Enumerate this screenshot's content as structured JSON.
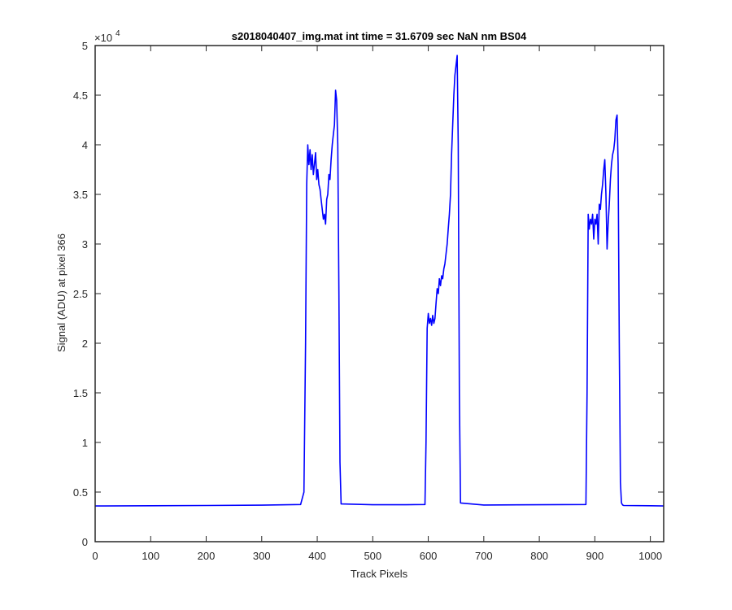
{
  "chart_data": {
    "type": "line",
    "title": "s2018040407_img.mat int time = 31.6709 sec  NaN nm BS04",
    "xlabel": "Track Pixels",
    "ylabel": "Signal (ADU) at pixel 366",
    "y_exponent_label": "×10",
    "y_exponent": "4",
    "xlim": [
      0,
      1024
    ],
    "ylim": [
      0,
      50000
    ],
    "x_ticks": [
      0,
      100,
      200,
      300,
      400,
      500,
      600,
      700,
      800,
      900,
      1000
    ],
    "x_tick_labels": [
      "0",
      "100",
      "200",
      "300",
      "400",
      "500",
      "600",
      "700",
      "800",
      "900",
      "1000"
    ],
    "y_ticks": [
      0,
      5000,
      10000,
      15000,
      20000,
      25000,
      30000,
      35000,
      40000,
      45000,
      50000
    ],
    "y_tick_labels": [
      "0",
      "0.5",
      "1",
      "1.5",
      "2",
      "2.5",
      "3",
      "3.5",
      "4",
      "4.5",
      "5"
    ],
    "grid": false,
    "series": [
      {
        "color": "#0000ff",
        "x": [
          0,
          100,
          200,
          300,
          370,
          376,
          379,
          381,
          383,
          385,
          387,
          389,
          391,
          393,
          395,
          397,
          399,
          401,
          403,
          405,
          407,
          409,
          411,
          413,
          415,
          417,
          419,
          421,
          423,
          425,
          427,
          429,
          431,
          433,
          435,
          437,
          439,
          441,
          443,
          500,
          560,
          594,
          596,
          598,
          600,
          602,
          604,
          606,
          608,
          610,
          612,
          614,
          616,
          618,
          620,
          622,
          624,
          626,
          628,
          630,
          632,
          634,
          636,
          638,
          640,
          642,
          644,
          646,
          648,
          650,
          652,
          654,
          656,
          658,
          700,
          800,
          884,
          886,
          888,
          890,
          892,
          894,
          896,
          898,
          900,
          902,
          904,
          906,
          908,
          910,
          912,
          914,
          916,
          918,
          920,
          922,
          924,
          926,
          928,
          930,
          932,
          934,
          936,
          938,
          940,
          942,
          944,
          946,
          948,
          950,
          952,
          1000,
          1024
        ],
        "y": [
          3600,
          3620,
          3650,
          3680,
          3750,
          5000,
          20000,
          36000,
          40000,
          38000,
          39500,
          37500,
          39000,
          37000,
          38000,
          39200,
          36500,
          37500,
          36000,
          35500,
          34500,
          33500,
          32500,
          33000,
          32000,
          34500,
          35000,
          37000,
          36500,
          38500,
          40000,
          41000,
          42000,
          45500,
          44500,
          40000,
          25000,
          8000,
          3800,
          3720,
          3720,
          3750,
          10000,
          21500,
          23000,
          22000,
          22500,
          21800,
          22800,
          22000,
          22500,
          24000,
          25500,
          25000,
          26500,
          25800,
          26800,
          26500,
          27500,
          28000,
          29000,
          30000,
          31500,
          33000,
          35000,
          39000,
          42000,
          45000,
          47000,
          48000,
          49000,
          40000,
          15000,
          3900,
          3700,
          3720,
          3750,
          15000,
          33000,
          31500,
          32500,
          32000,
          33000,
          30500,
          32500,
          32000,
          33000,
          30000,
          34000,
          33500,
          35000,
          36000,
          37500,
          38500,
          35000,
          29500,
          32000,
          34000,
          36500,
          38000,
          39000,
          39500,
          40500,
          42500,
          43000,
          38000,
          20000,
          6000,
          3900,
          3700,
          3650,
          3620,
          3600
        ]
      }
    ]
  }
}
